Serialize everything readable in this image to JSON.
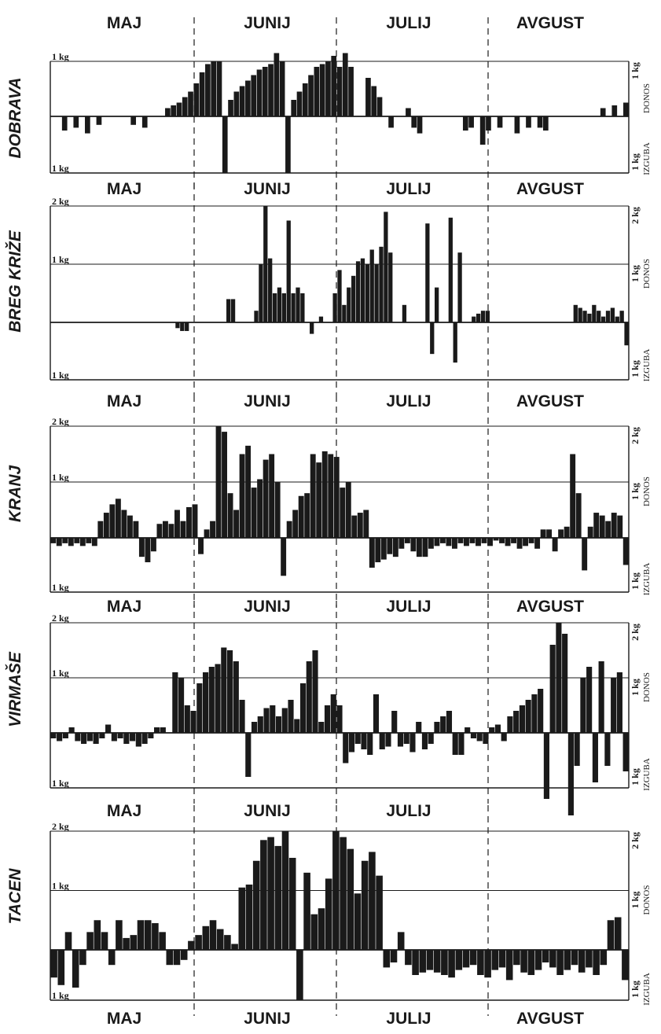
{
  "chart_data": [
    {
      "type": "bar",
      "station": "DOBRAVA",
      "months_top": [
        "MAJ",
        "JUNIJ",
        "JULIJ",
        "AVGUST"
      ],
      "months_bottom": [],
      "left_ticks": [
        "1 kg",
        "1 kg"
      ],
      "right_ticks": [
        "1 kg",
        "1 kg"
      ],
      "right_labels": [
        "DONOS",
        "IZGUBA"
      ],
      "ylim": [
        -1,
        1
      ],
      "gridlines": [
        1
      ],
      "values": [
        0,
        0,
        -0.25,
        0,
        -0.2,
        0,
        -0.3,
        0,
        -0.15,
        0,
        0,
        0,
        0,
        0,
        -0.15,
        0,
        -0.2,
        0,
        0,
        0,
        0.15,
        0.2,
        0.25,
        0.35,
        0.45,
        0.6,
        0.8,
        0.95,
        1.0,
        1.0,
        -1.0,
        0.3,
        0.45,
        0.55,
        0.65,
        0.75,
        0.85,
        0.9,
        0.95,
        1.15,
        1.0,
        -1.0,
        0.3,
        0.45,
        0.6,
        0.75,
        0.9,
        0.95,
        1.0,
        1.1,
        0.9,
        1.15,
        0.9,
        0,
        0,
        0.7,
        0.55,
        0.35,
        0,
        -0.2,
        0,
        0,
        0.15,
        -0.2,
        -0.3,
        0,
        0,
        0,
        0,
        0,
        0,
        0,
        -0.25,
        -0.2,
        0,
        -0.5,
        -0.25,
        0,
        -0.2,
        0,
        0,
        -0.3,
        0,
        -0.2,
        0,
        -0.2,
        -0.25,
        0,
        0,
        0,
        0,
        0,
        0,
        0,
        0,
        0,
        0.15,
        0,
        0.2,
        0,
        0.25
      ]
    },
    {
      "type": "bar",
      "station": "BREG KRIŽE",
      "months_top": [
        "MAJ",
        "JUNIJ",
        "JULIJ",
        "AVGUST"
      ],
      "months_bottom": [],
      "left_ticks": [
        "2 kg",
        "1 kg",
        "1 kg"
      ],
      "right_ticks": [
        "2 kg",
        "1 kg",
        "1 kg"
      ],
      "right_labels": [
        "DONOS",
        "IZGUBA"
      ],
      "ylim": [
        -1,
        2
      ],
      "gridlines": [
        1,
        2
      ],
      "values": [
        0,
        0,
        0,
        0,
        0,
        0,
        0,
        0,
        0,
        0,
        0,
        0,
        0,
        0,
        0,
        0,
        0,
        0,
        0,
        0,
        0,
        0,
        0,
        0,
        0,
        0,
        0,
        -0.1,
        -0.15,
        -0.15,
        0,
        0,
        0,
        0,
        0,
        0,
        0,
        0,
        0.4,
        0.4,
        0,
        0,
        0,
        0,
        0.2,
        1.0,
        2.0,
        1.1,
        0.5,
        0.6,
        0.5,
        1.75,
        0.5,
        0.6,
        0.5,
        0,
        -0.2,
        0,
        0.1,
        0,
        0,
        0.5,
        0.9,
        0.3,
        0.6,
        0.8,
        1.05,
        1.1,
        1.0,
        1.25,
        1.0,
        1.3,
        1.9,
        1.2,
        0,
        0,
        0.3,
        0,
        0,
        0,
        0,
        1.7,
        -0.55,
        0.6,
        0,
        0,
        1.8,
        -0.7,
        1.2,
        0,
        0,
        0.1,
        0.15,
        0.2,
        0.2,
        0,
        0,
        0,
        0,
        0,
        0,
        0,
        0,
        0,
        0,
        0,
        0,
        0,
        0,
        0,
        0,
        0,
        0,
        0.3,
        0.25,
        0.2,
        0.15,
        0.3,
        0.2,
        0.1,
        0.2,
        0.25,
        0.1,
        0.2,
        -0.4
      ]
    },
    {
      "type": "bar",
      "station": "KRANJ",
      "months_top": [
        "MAJ",
        "JUNIJ",
        "JULIJ",
        "AVGUST"
      ],
      "months_bottom": [],
      "left_ticks": [
        "2 kg",
        "1 kg",
        "1 kg"
      ],
      "right_ticks": [
        "2 kg",
        "1 kg",
        "1 kg"
      ],
      "right_labels": [
        "DONOS",
        "IZGUBA"
      ],
      "ylim": [
        -1,
        2
      ],
      "gridlines": [
        1,
        2
      ],
      "values": [
        -0.1,
        -0.15,
        -0.1,
        -0.15,
        -0.1,
        -0.15,
        -0.1,
        -0.15,
        0.3,
        0.45,
        0.6,
        0.7,
        0.5,
        0.4,
        0.3,
        -0.35,
        -0.45,
        -0.25,
        0.25,
        0.3,
        0.25,
        0.5,
        0.3,
        0.55,
        0.6,
        -0.3,
        0.15,
        0.3,
        2.0,
        1.9,
        0.8,
        0.5,
        1.5,
        1.65,
        0.9,
        1.05,
        1.4,
        1.5,
        1.0,
        -0.7,
        0.3,
        0.5,
        0.75,
        0.8,
        1.5,
        1.35,
        1.55,
        1.5,
        1.45,
        0.9,
        1.0,
        0.4,
        0.45,
        0.5,
        -0.55,
        -0.45,
        -0.4,
        -0.3,
        -0.35,
        -0.2,
        -0.1,
        -0.25,
        -0.35,
        -0.35,
        -0.2,
        -0.15,
        -0.1,
        -0.15,
        -0.2,
        -0.1,
        -0.15,
        -0.1,
        -0.15,
        -0.1,
        -0.15,
        -0.05,
        -0.1,
        -0.15,
        -0.1,
        -0.2,
        -0.15,
        -0.1,
        -0.2,
        0.15,
        0.15,
        -0.25,
        0.15,
        0.2,
        1.5,
        0.8,
        -0.6,
        0.2,
        0.45,
        0.4,
        0.3,
        0.45,
        0.4,
        -0.5
      ]
    },
    {
      "type": "bar",
      "station": "VIRMAŠE",
      "months_top": [
        "MAJ",
        "JUNIJ",
        "JULIJ",
        "AVGUST"
      ],
      "months_bottom": [],
      "left_ticks": [
        "2 kg",
        "1 kg",
        "1 kg"
      ],
      "right_ticks": [
        "2 kg",
        "1 kg",
        "1 kg"
      ],
      "right_labels": [
        "DONOS",
        "IZGUBA"
      ],
      "ylim": [
        -1,
        2
      ],
      "gridlines": [
        1,
        2
      ],
      "values": [
        -0.1,
        -0.15,
        -0.1,
        0.1,
        -0.15,
        -0.2,
        -0.15,
        -0.2,
        -0.1,
        0.15,
        -0.15,
        -0.1,
        -0.2,
        -0.15,
        -0.25,
        -0.2,
        -0.1,
        0.1,
        0.1,
        0,
        1.1,
        1.0,
        0.5,
        0.4,
        0.9,
        1.1,
        1.2,
        1.25,
        1.55,
        1.5,
        1.3,
        0.6,
        -0.8,
        0.2,
        0.3,
        0.45,
        0.5,
        0.3,
        0.45,
        0.6,
        0.25,
        0.9,
        1.3,
        1.5,
        0.2,
        0.5,
        0.7,
        0.5,
        -0.55,
        -0.35,
        -0.2,
        -0.3,
        -0.4,
        0.7,
        -0.3,
        -0.25,
        0.4,
        -0.25,
        -0.2,
        -0.35,
        0.2,
        -0.3,
        -0.2,
        0.2,
        0.3,
        0.4,
        -0.4,
        -0.4,
        0.1,
        -0.1,
        -0.15,
        -0.2,
        0.1,
        0.15,
        -0.15,
        0.3,
        0.4,
        0.5,
        0.6,
        0.7,
        0.8,
        -1.2,
        1.6,
        2.0,
        1.8,
        -1.5,
        -0.6,
        1.0,
        1.2,
        -0.9,
        1.3,
        -0.6,
        1.0,
        1.1,
        -0.7
      ]
    },
    {
      "type": "bar",
      "station": "TACEN",
      "months_top": [
        "MAJ",
        "JUNIJ",
        "JULIJ"
      ],
      "months_bottom": [
        "MAJ",
        "JUNIJ",
        "JULIJ",
        "AVGUST"
      ],
      "left_ticks": [
        "2 kg",
        "1 kg",
        "1 kg"
      ],
      "right_ticks": [
        "2 kg",
        "1 kg",
        "1 kg"
      ],
      "right_labels": [
        "DONOS",
        "IZGUBA"
      ],
      "ylim": [
        -1,
        2
      ],
      "gridlines": [
        1,
        2
      ],
      "values": [
        -0.55,
        -0.7,
        0.3,
        -0.75,
        -0.3,
        0.3,
        0.5,
        0.3,
        -0.3,
        0.5,
        0.2,
        0.25,
        0.5,
        0.5,
        0.45,
        0.3,
        -0.3,
        -0.3,
        -0.2,
        0.15,
        0.25,
        0.4,
        0.5,
        0.35,
        0.25,
        0.1,
        1.05,
        1.1,
        1.5,
        1.85,
        1.9,
        1.75,
        2.0,
        1.55,
        -1.0,
        1.3,
        0.6,
        0.7,
        1.2,
        2.0,
        1.9,
        1.7,
        0.95,
        1.5,
        1.65,
        1.25,
        -0.35,
        -0.25,
        0.3,
        -0.3,
        -0.5,
        -0.45,
        -0.4,
        -0.45,
        -0.5,
        -0.55,
        -0.4,
        -0.35,
        -0.3,
        -0.5,
        -0.55,
        -0.4,
        -0.35,
        -0.6,
        -0.3,
        -0.45,
        -0.5,
        -0.4,
        -0.25,
        -0.35,
        -0.5,
        -0.4,
        -0.3,
        -0.45,
        -0.35,
        -0.5,
        -0.3,
        0.5,
        0.55,
        -0.6
      ]
    }
  ]
}
